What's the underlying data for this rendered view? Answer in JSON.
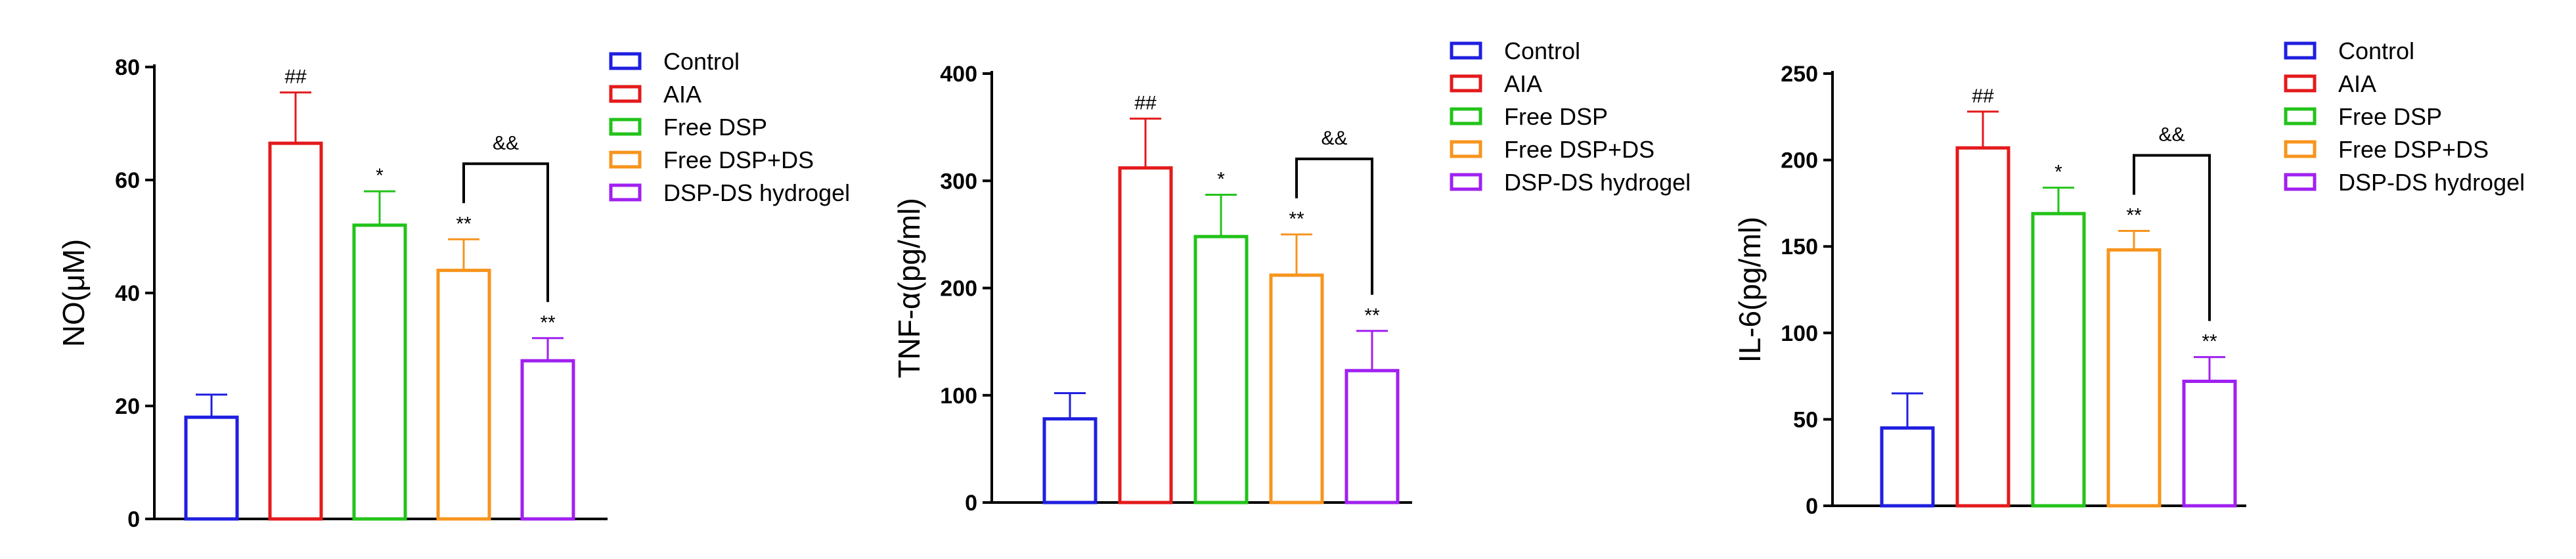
{
  "chart_data": [
    {
      "type": "bar",
      "ylabel": "NO(μM)",
      "ylim": [
        0,
        80
      ],
      "yticks": [
        0,
        20,
        40,
        60,
        80
      ],
      "categories": [
        "Control",
        "AIA",
        "Free DSP",
        "Free DSP+DS",
        "DSP-DS hydrogel"
      ],
      "values": [
        18,
        66.5,
        52,
        44,
        28
      ],
      "errors": [
        4,
        9,
        6,
        5.5,
        4
      ],
      "significance": [
        "",
        "##",
        "*",
        "**",
        "**"
      ],
      "bracket": {
        "from": 3,
        "to": 4,
        "label": "&&"
      },
      "legend": [
        "Control",
        "AIA",
        "Free DSP",
        "Free DSP+DS",
        "DSP-DS hydrogel"
      ]
    },
    {
      "type": "bar",
      "ylabel": "TNF-α(pg/ml)",
      "ylim": [
        0,
        400
      ],
      "yticks": [
        0,
        100,
        200,
        300,
        400
      ],
      "categories": [
        "Control",
        "AIA",
        "Free DSP",
        "Free DSP+DS",
        "DSP-DS hydrogel"
      ],
      "values": [
        78,
        312,
        248,
        212,
        123
      ],
      "errors": [
        24,
        46,
        39,
        38,
        37
      ],
      "significance": [
        "",
        "##",
        "*",
        "**",
        "**"
      ],
      "bracket": {
        "from": 3,
        "to": 4,
        "label": "&&"
      },
      "legend": [
        "Control",
        "AIA",
        "Free DSP",
        "Free DSP+DS",
        "DSP-DS hydrogel"
      ]
    },
    {
      "type": "bar",
      "ylabel": "IL-6(pg/ml)",
      "ylim": [
        0,
        250
      ],
      "yticks": [
        0,
        50,
        100,
        150,
        200,
        250
      ],
      "categories": [
        "Control",
        "AIA",
        "Free DSP",
        "Free DSP+DS",
        "DSP-DS hydrogel"
      ],
      "values": [
        45,
        207,
        169,
        148,
        72
      ],
      "errors": [
        20,
        21,
        15,
        11,
        14
      ],
      "significance": [
        "",
        "##",
        "*",
        "**",
        "**"
      ],
      "bracket": {
        "from": 3,
        "to": 4,
        "label": "&&"
      },
      "legend": [
        "Control",
        "AIA",
        "Free DSP",
        "Free DSP+DS",
        "DSP-DS hydrogel"
      ]
    }
  ],
  "colors": [
    "#1f1fe0",
    "#e31a1c",
    "#22c31a",
    "#f7941d",
    "#a020f0"
  ]
}
